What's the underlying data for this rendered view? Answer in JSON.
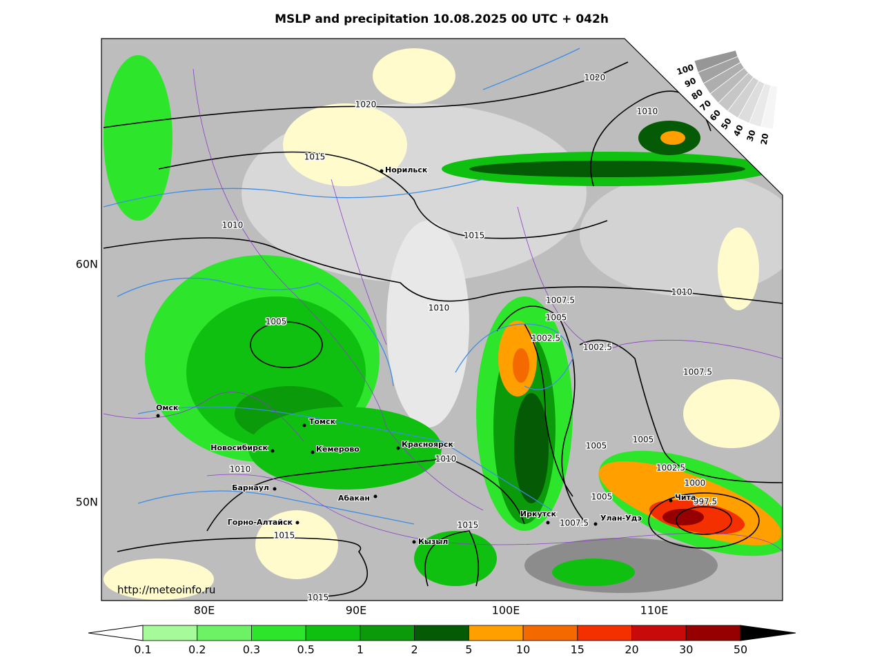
{
  "title": "MSLP and precipitation 10.08.2025 00 UTC + 042h",
  "isobar_labels": [
    1020,
    1020,
    1010,
    1015,
    1015,
    1010,
    1010,
    1010,
    1005,
    1007.5,
    1005,
    1002.5,
    1002.5,
    1007.5,
    1005,
    1005,
    1002.5,
    1000,
    997.5,
    1010,
    1010,
    1005,
    1007.5,
    1015,
    1015,
    1015
  ],
  "cities": [
    "Норильск",
    "Омск",
    "Томск",
    "Новосибирск",
    "Кемерово",
    "Красноярск",
    "Барнаул",
    "Абакан",
    "Горно-Алтайск",
    "Иркутск",
    "Улан-Удэ",
    "Чита",
    "Кызыл"
  ],
  "lat_labels": [
    "60N",
    "50N"
  ],
  "lon_labels": [
    "80E",
    "90E",
    "100E",
    "110E"
  ],
  "url": "http://meteoinfo.ru",
  "precip_scale": {
    "levels": [
      0.1,
      0.2,
      0.3,
      0.5,
      1,
      2,
      5,
      10,
      15,
      20,
      30,
      50
    ],
    "colors": [
      "#a6fa9a",
      "#6cf264",
      "#2de62c",
      "#10c010",
      "#0a9a0a",
      "#055a05",
      "#ffa000",
      "#f56a00",
      "#f53000",
      "#c80a0a",
      "#960000"
    ]
  },
  "cloud_scale": [
    100,
    90,
    80,
    70,
    60,
    50,
    40,
    30,
    20
  ]
}
